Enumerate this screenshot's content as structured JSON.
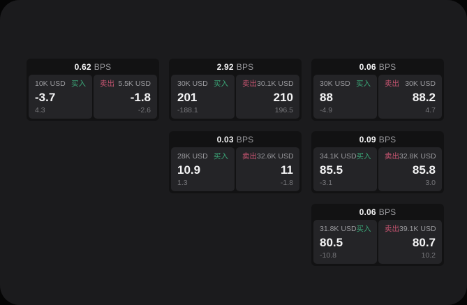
{
  "colors": {
    "background_outer": "#050505",
    "background_screen": "#1B1B1D",
    "card_background": "#121213",
    "panel_background": "#242427",
    "text_primary": "#F4F4F5",
    "text_secondary": "#9A9A9E",
    "text_dim": "#77777B",
    "buy_green": "#3BA778",
    "sell_red": "#C75571"
  },
  "cards": [
    {
      "bps": "0.62",
      "unit": "BPS",
      "buy": {
        "amount": "10K USD",
        "side": "买入",
        "price": "-3.7",
        "delta": "4.3"
      },
      "sell": {
        "side": "卖出",
        "amount": "5.5K USD",
        "price": "-1.8",
        "delta": "-2.6"
      }
    },
    {
      "bps": "2.92",
      "unit": "BPS",
      "buy": {
        "amount": "30K USD",
        "side": "买入",
        "price": "201",
        "delta": "-188.1"
      },
      "sell": {
        "side": "卖出",
        "amount": "30.1K USD",
        "price": "210",
        "delta": "196.5"
      }
    },
    {
      "bps": "0.06",
      "unit": "BPS",
      "buy": {
        "amount": "30K USD",
        "side": "买入",
        "price": "88",
        "delta": "-4.9"
      },
      "sell": {
        "side": "卖出",
        "amount": "30K USD",
        "price": "88.2",
        "delta": "4.7"
      }
    },
    {
      "bps": "0.03",
      "unit": "BPS",
      "buy": {
        "amount": "28K USD",
        "side": "买入",
        "price": "10.9",
        "delta": "1.3"
      },
      "sell": {
        "side": "卖出",
        "amount": "32.6K USD",
        "price": "11",
        "delta": "-1.8"
      }
    },
    {
      "bps": "0.09",
      "unit": "BPS",
      "buy": {
        "amount": "34.1K USD",
        "side": "买入",
        "price": "85.5",
        "delta": "-3.1"
      },
      "sell": {
        "side": "卖出",
        "amount": "32.8K USD",
        "price": "85.8",
        "delta": "3.0"
      }
    },
    {
      "bps": "0.06",
      "unit": "BPS",
      "buy": {
        "amount": "31.8K USD",
        "side": "买入",
        "price": "80.5",
        "delta": "-10.8"
      },
      "sell": {
        "side": "卖出",
        "amount": "39.1K USD",
        "price": "80.7",
        "delta": "10.2"
      }
    }
  ]
}
